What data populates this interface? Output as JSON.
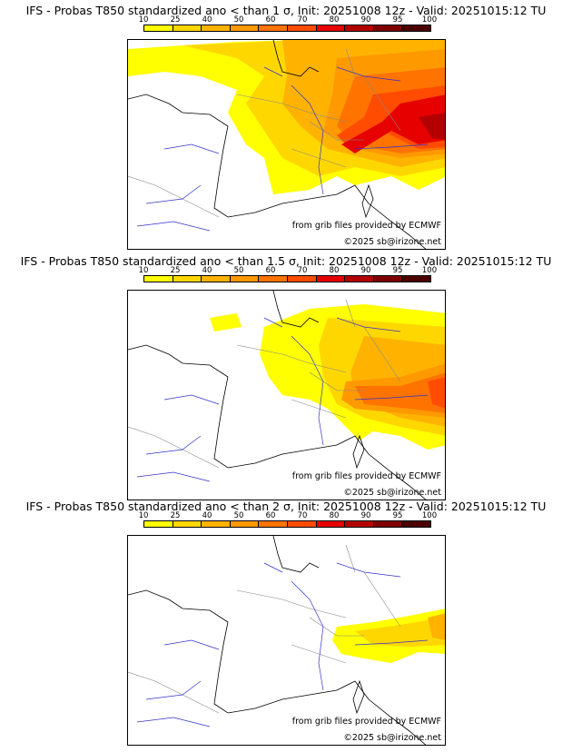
{
  "colorbar": {
    "labels": [
      "10",
      "25",
      "40",
      "50",
      "60",
      "70",
      "80",
      "90",
      "95",
      "100"
    ],
    "colors": [
      "#ffff00",
      "#ffd700",
      "#ffb300",
      "#ff9900",
      "#ff7300",
      "#ff4c00",
      "#e60000",
      "#b30000",
      "#800000",
      "#4d0000"
    ]
  },
  "panels": [
    {
      "title": "IFS - Probas T850  standardized ano < than 1 σ, Init: 20251008 12z - Valid: 20251015:12 TU",
      "source": "from grib files provided by ECMWF",
      "copyright": "©2025 sb@irizone.net"
    },
    {
      "title": "IFS - Probas T850  standardized ano < than 1.5 σ, Init: 20251008 12z - Valid: 20251015:12 TU",
      "source": "from grib files provided by ECMWF",
      "copyright": "©2025 sb@irizone.net"
    },
    {
      "title": "IFS - Probas T850  standardized ano < than 2 σ, Init: 20251008 12z - Valid: 20251015:12 TU",
      "source": "from grib files provided by ECMWF",
      "copyright": "©2025 sb@irizone.net"
    }
  ],
  "map_style": {
    "coast": "#000000",
    "border": "#888888",
    "river": "#3333cc"
  }
}
